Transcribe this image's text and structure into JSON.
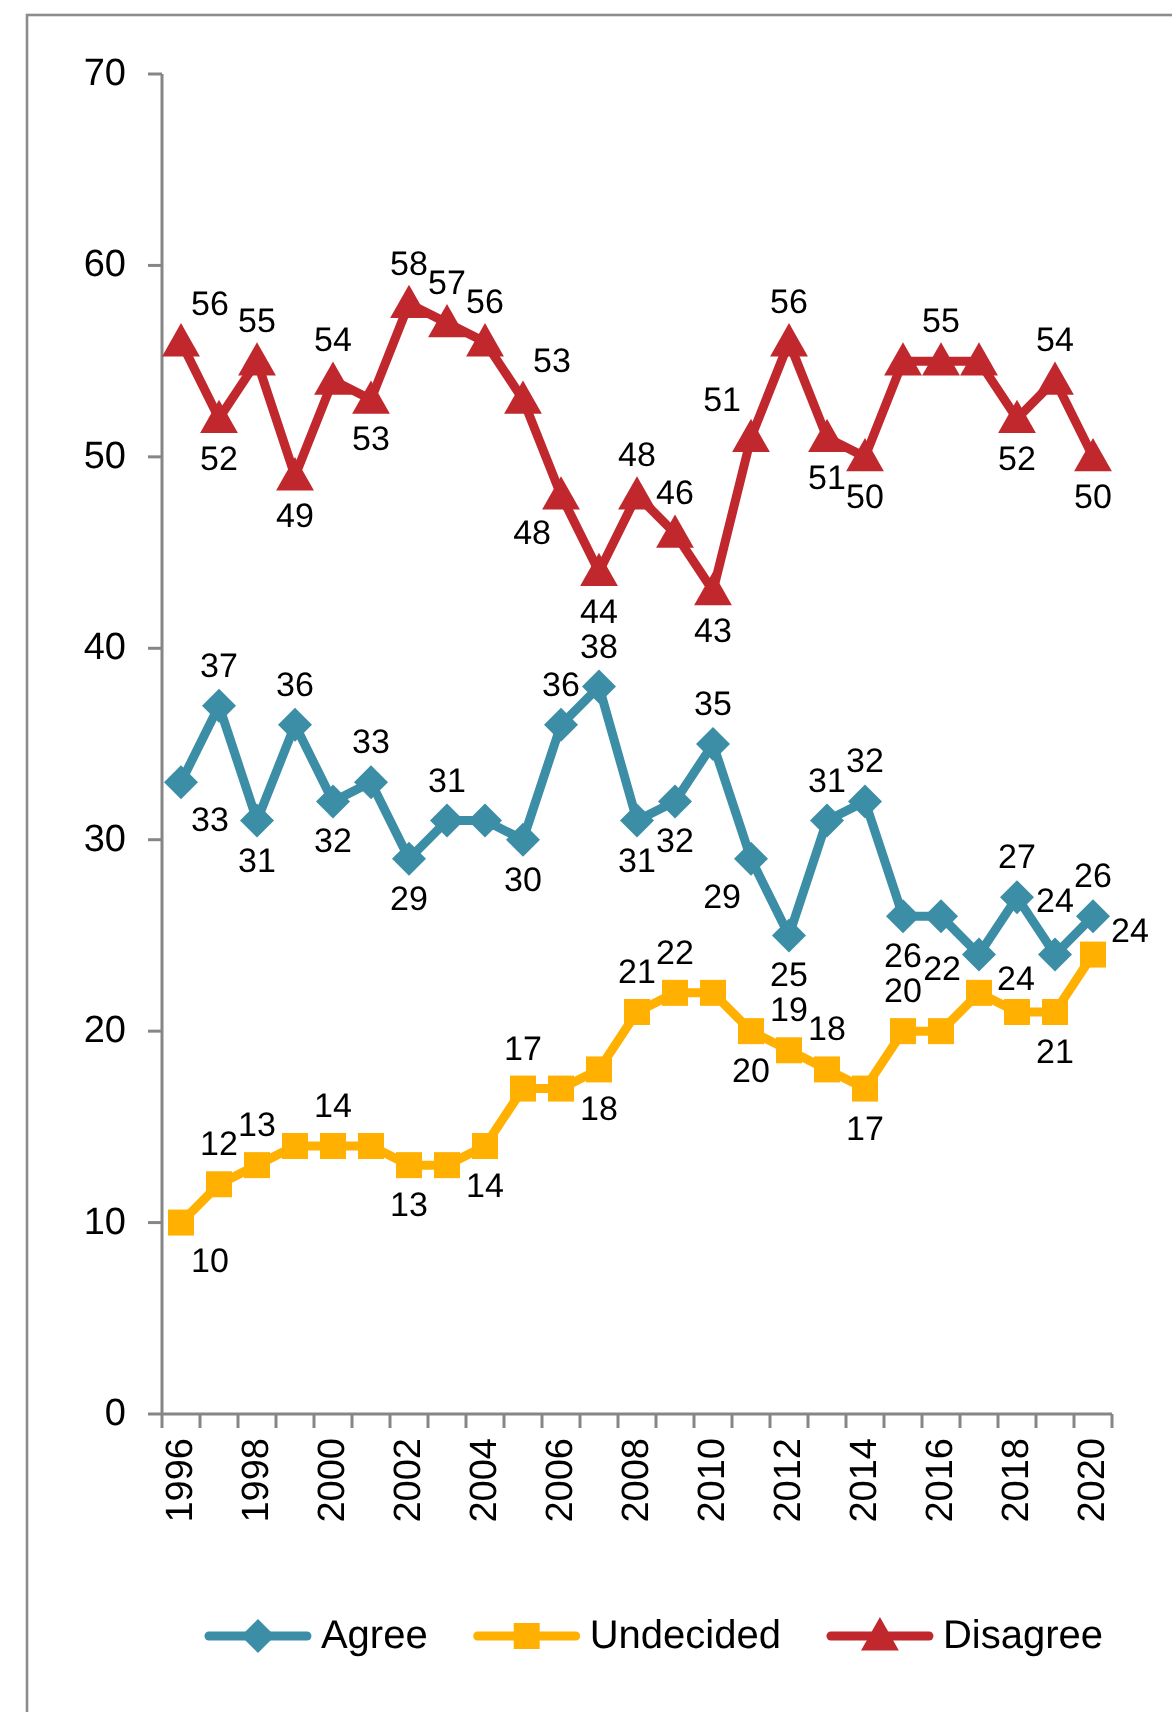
{
  "chart_data": {
    "type": "line",
    "categories": [
      "1996",
      null,
      "1998",
      null,
      "2000",
      null,
      "2002",
      null,
      "2004",
      null,
      "2006",
      null,
      "2008",
      null,
      "2010",
      null,
      "2012",
      null,
      "2014",
      null,
      "2016",
      null,
      "2018",
      null,
      "2020"
    ],
    "series": [
      {
        "name": "Agree",
        "color": "#3b8ea5",
        "marker": "diamond",
        "values": [
          33,
          37,
          31,
          36,
          32,
          33,
          29,
          31,
          31,
          30,
          36,
          38,
          31,
          32,
          35,
          29,
          25,
          31,
          32,
          26,
          26,
          24,
          27,
          24,
          26
        ],
        "value_labels": [
          "33",
          "37",
          "31",
          "36",
          "32",
          "33",
          "29",
          "31",
          null,
          "30",
          "36",
          "38",
          "31",
          "32",
          "35",
          "29",
          "25",
          "31",
          "32",
          "26",
          null,
          "24",
          "27",
          "24",
          "26"
        ]
      },
      {
        "name": "Undecided",
        "color": "#ffb000",
        "marker": "square",
        "values": [
          10,
          12,
          13,
          14,
          14,
          14,
          13,
          13,
          14,
          17,
          17,
          18,
          21,
          22,
          22,
          20,
          19,
          18,
          17,
          20,
          20,
          22,
          21,
          21,
          24
        ],
        "value_labels": [
          "10",
          "12",
          "13",
          null,
          "14",
          null,
          "13",
          null,
          "14",
          "17",
          null,
          "18",
          "21",
          "22",
          null,
          "20",
          "19",
          "18",
          "17",
          "20",
          null,
          "22",
          null,
          "21",
          "24"
        ]
      },
      {
        "name": "Disagree",
        "color": "#c0282d",
        "marker": "triangle",
        "values": [
          56,
          52,
          55,
          49,
          54,
          53,
          58,
          57,
          56,
          53,
          48,
          44,
          48,
          46,
          43,
          51,
          56,
          51,
          50,
          55,
          55,
          55,
          52,
          54,
          50
        ],
        "value_labels": [
          "56",
          "52",
          "55",
          "49",
          "54",
          "53",
          "58",
          "57",
          "56",
          "53",
          "48",
          "44",
          "48",
          "46",
          "43",
          "51",
          "56",
          "51",
          "50",
          null,
          "55",
          null,
          "52",
          "54",
          "50"
        ]
      }
    ],
    "ylim": [
      0,
      70
    ],
    "yticks": [
      0,
      10,
      20,
      30,
      40,
      50,
      60,
      70
    ],
    "grid": false,
    "legend": "bottom",
    "line_style": "solid"
  }
}
